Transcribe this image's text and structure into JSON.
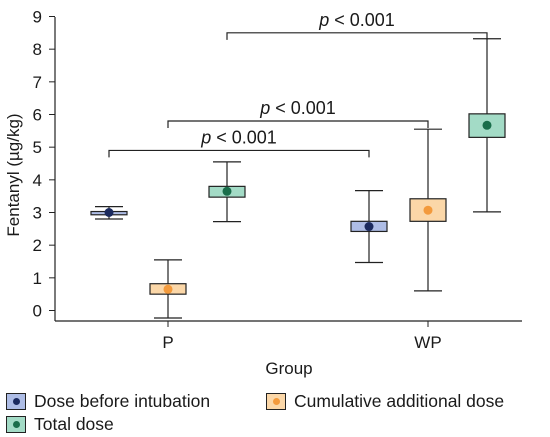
{
  "chart_data": {
    "type": "box",
    "ylabel": "Fentanyl (µg/kg)",
    "xlabel": "Group",
    "ylim": [
      -0.3,
      9
    ],
    "yticks": [
      0,
      1,
      2,
      3,
      4,
      5,
      6,
      7,
      8,
      9
    ],
    "grid": false,
    "legend_position": "bottom",
    "categories": [
      "P",
      "WP"
    ],
    "series": [
      {
        "name": "Dose before intubation",
        "box_color": "#aebde6",
        "marker_color": "#1b2a5e",
        "values": [
          {
            "group": "P",
            "whisker_low": 2.8,
            "q1": 2.93,
            "q3": 3.03,
            "whisker_high": 3.18,
            "mean": 3.0
          },
          {
            "group": "WP",
            "whisker_low": 1.47,
            "q1": 2.42,
            "q3": 2.73,
            "whisker_high": 3.67,
            "mean": 2.57
          }
        ]
      },
      {
        "name": "Cumulative additional dose",
        "box_color": "#fbd7a8",
        "marker_color": "#f39a3c",
        "values": [
          {
            "group": "P",
            "whisker_low": -0.23,
            "q1": 0.5,
            "q3": 0.82,
            "whisker_high": 1.55,
            "mean": 0.65
          },
          {
            "group": "WP",
            "whisker_low": 0.6,
            "q1": 2.73,
            "q3": 3.42,
            "whisker_high": 5.55,
            "mean": 3.07
          }
        ]
      },
      {
        "name": "Total dose",
        "box_color": "#a3dbc6",
        "marker_color": "#1a6e4b",
        "values": [
          {
            "group": "P",
            "whisker_low": 2.72,
            "q1": 3.47,
            "q3": 3.8,
            "whisker_high": 4.55,
            "mean": 3.65
          },
          {
            "group": "WP",
            "whisker_low": 3.02,
            "q1": 5.3,
            "q3": 6.02,
            "whisker_high": 8.32,
            "mean": 5.67
          }
        ]
      }
    ],
    "annotations": [
      {
        "label": "p < 0.001",
        "label_prefix": "p",
        "label_rest": " < 0.001",
        "from": "P · Dose before intubation",
        "to": "WP · Dose before intubation",
        "level": 4.9
      },
      {
        "label": "p < 0.001",
        "label_prefix": "p",
        "label_rest": " < 0.001",
        "from": "P · Cumulative additional dose",
        "to": "WP · Cumulative additional dose",
        "level": 5.8
      },
      {
        "label": "p < 0.001",
        "label_prefix": "p",
        "label_rest": " < 0.001",
        "from": "P · Total dose",
        "to": "WP · Total dose",
        "level": 8.5
      }
    ]
  },
  "legend": {
    "items": [
      {
        "label": "Dose before intubation",
        "box_color": "#aebde6",
        "marker_color": "#1b2a5e"
      },
      {
        "label": "Cumulative additional dose",
        "box_color": "#fbd7a8",
        "marker_color": "#f39a3c"
      },
      {
        "label": "Total dose",
        "box_color": "#a3dbc6",
        "marker_color": "#1a6e4b"
      }
    ]
  }
}
